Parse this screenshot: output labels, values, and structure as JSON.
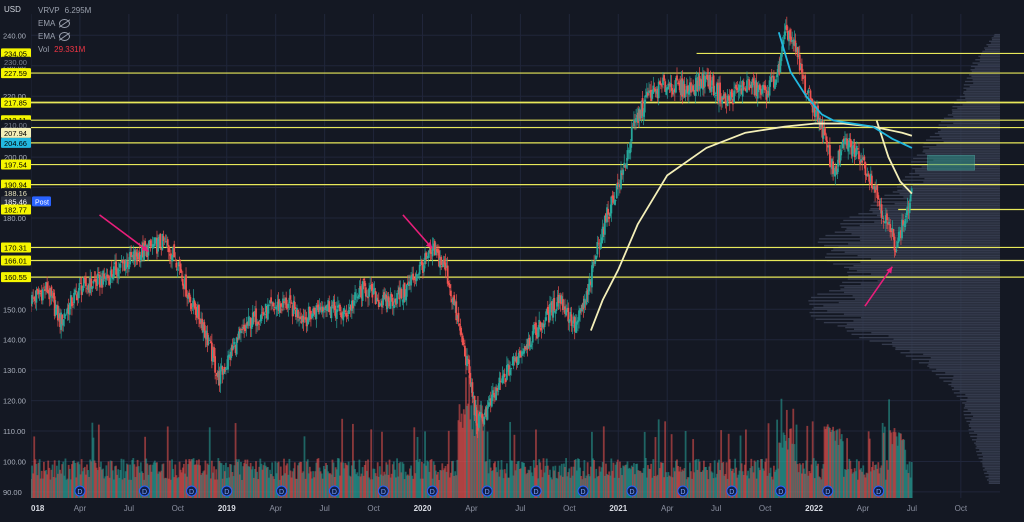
{
  "currency": "USD",
  "legend": [
    {
      "label": "VRVP",
      "value": "6.295M",
      "value_color": "#9aa0ad"
    },
    {
      "label": "EMA",
      "value": "",
      "icon": "eye-hidden-icon"
    },
    {
      "label": "EMA",
      "value": "",
      "icon": "eye-hidden-icon"
    },
    {
      "label": "Vol",
      "value": "29.331M",
      "value_color": "#f23645"
    }
  ],
  "colors": {
    "background": "#141823",
    "grid": "#20263a",
    "up": "#26a69a",
    "down": "#ef5350",
    "level_line": "#e8e85a",
    "level_tag": "#f5f500",
    "ema_fast": "#22b8e0",
    "ema_slow": "#f4efb8",
    "arrow": "#e91e7a",
    "zone": "#2f8f86",
    "post_tag": "#2962ff",
    "dividend": "#2962ff"
  },
  "chart_data": {
    "type": "candlestick",
    "title": "",
    "xlabel": "",
    "ylabel": "",
    "x_ticks": [
      "018",
      "Apr",
      "Jul",
      "Oct",
      "2019",
      "Apr",
      "Jul",
      "Oct",
      "2020",
      "Apr",
      "Jul",
      "Oct",
      "2021",
      "Apr",
      "Jul",
      "Oct",
      "2022",
      "Apr",
      "Jul",
      "Oct"
    ],
    "x_tick_dates": [
      2018.0,
      2018.25,
      2018.5,
      2018.75,
      2019.0,
      2019.25,
      2019.5,
      2019.75,
      2020.0,
      2020.25,
      2020.5,
      2020.75,
      2021.0,
      2021.25,
      2021.5,
      2021.75,
      2022.0,
      2022.25,
      2022.5,
      2022.75
    ],
    "xlim": [
      2018.0,
      2022.95
    ],
    "y_ticks": [
      240,
      230,
      220,
      210,
      200,
      190,
      180,
      170,
      160,
      150,
      140,
      130,
      120,
      110,
      100,
      90
    ],
    "y_tick_labels": [
      "240.00",
      "230.00",
      "220.00",
      "210.00",
      "200.00",
      "190.00",
      "180.00",
      "170.00",
      "160.00",
      "150.00",
      "140.00",
      "130.00",
      "120.00",
      "110.00",
      "100.00",
      "90.00"
    ],
    "ylim": [
      88,
      247
    ],
    "price_path": [
      [
        2018.0,
        153
      ],
      [
        2018.08,
        157
      ],
      [
        2018.15,
        146
      ],
      [
        2018.25,
        157
      ],
      [
        2018.38,
        160
      ],
      [
        2018.5,
        166
      ],
      [
        2018.6,
        170
      ],
      [
        2018.68,
        172
      ],
      [
        2018.75,
        166
      ],
      [
        2018.8,
        155
      ],
      [
        2018.88,
        145
      ],
      [
        2018.96,
        127
      ],
      [
        2019.04,
        138
      ],
      [
        2019.12,
        146
      ],
      [
        2019.22,
        150
      ],
      [
        2019.3,
        152
      ],
      [
        2019.4,
        147
      ],
      [
        2019.5,
        152
      ],
      [
        2019.6,
        148
      ],
      [
        2019.7,
        157
      ],
      [
        2019.8,
        152
      ],
      [
        2019.9,
        155
      ],
      [
        2019.98,
        163
      ],
      [
        2020.06,
        169
      ],
      [
        2020.12,
        163
      ],
      [
        2020.18,
        146
      ],
      [
        2020.23,
        132
      ],
      [
        2020.28,
        112
      ],
      [
        2020.33,
        117
      ],
      [
        2020.42,
        128
      ],
      [
        2020.52,
        138
      ],
      [
        2020.62,
        146
      ],
      [
        2020.7,
        154
      ],
      [
        2020.78,
        144
      ],
      [
        2020.84,
        154
      ],
      [
        2020.9,
        172
      ],
      [
        2020.96,
        184
      ],
      [
        2021.02,
        194
      ],
      [
        2021.08,
        210
      ],
      [
        2021.15,
        220
      ],
      [
        2021.25,
        224
      ],
      [
        2021.35,
        222
      ],
      [
        2021.45,
        226
      ],
      [
        2021.55,
        218
      ],
      [
        2021.65,
        224
      ],
      [
        2021.75,
        221
      ],
      [
        2021.82,
        228
      ],
      [
        2021.86,
        242
      ],
      [
        2021.9,
        236
      ],
      [
        2021.96,
        222
      ],
      [
        2022.03,
        212
      ],
      [
        2022.1,
        195
      ],
      [
        2022.16,
        205
      ],
      [
        2022.24,
        200
      ],
      [
        2022.3,
        192
      ],
      [
        2022.36,
        180
      ],
      [
        2022.42,
        171
      ],
      [
        2022.47,
        181
      ],
      [
        2022.5,
        187
      ]
    ],
    "ema_fast": [
      [
        2021.82,
        241
      ],
      [
        2021.88,
        228
      ],
      [
        2021.96,
        220
      ],
      [
        2022.04,
        214
      ],
      [
        2022.1,
        212
      ],
      [
        2022.2,
        211
      ],
      [
        2022.3,
        210
      ],
      [
        2022.4,
        206
      ],
      [
        2022.5,
        203
      ]
    ],
    "ema_slow": [
      [
        2020.86,
        143
      ],
      [
        2020.92,
        153
      ],
      [
        2021.0,
        163
      ],
      [
        2021.1,
        178
      ],
      [
        2021.25,
        194
      ],
      [
        2021.45,
        203
      ],
      [
        2021.65,
        208
      ],
      [
        2021.85,
        210
      ],
      [
        2022.0,
        211
      ],
      [
        2022.15,
        211
      ],
      [
        2022.3,
        210
      ],
      [
        2022.45,
        208
      ],
      [
        2022.5,
        207
      ]
    ],
    "ema_slow_tail": [
      [
        2022.32,
        212
      ],
      [
        2022.38,
        200
      ],
      [
        2022.44,
        192
      ],
      [
        2022.5,
        188
      ]
    ],
    "horizontal_levels": [
      {
        "price": 234.05,
        "from": 2021.4,
        "label": "234.05"
      },
      {
        "price": 227.59,
        "from": 2018.0,
        "label": "227.59"
      },
      {
        "price": 218.0,
        "from": 2018.0,
        "label": ""
      },
      {
        "price": 217.85,
        "from": 2018.0,
        "label": "217.85"
      },
      {
        "price": 212.11,
        "from": 2018.0,
        "label": "212.11"
      },
      {
        "price": 209.7,
        "from": 2018.0,
        "label": ""
      },
      {
        "price": 204.66,
        "from": 2018.0,
        "label": ""
      },
      {
        "price": 197.54,
        "from": 2018.0,
        "label": "197.54"
      },
      {
        "price": 190.94,
        "from": 2018.0,
        "label": "190.94"
      },
      {
        "price": 182.77,
        "from": 2022.43,
        "label": "182.77"
      },
      {
        "price": 170.31,
        "from": 2018.0,
        "label": "170.31"
      },
      {
        "price": 166.01,
        "from": 2018.0,
        "label": "166.01"
      },
      {
        "price": 160.55,
        "from": 2018.0,
        "label": "160.55"
      }
    ],
    "price_tags": [
      {
        "label": "234.05",
        "price": 234.05,
        "kind": "level"
      },
      {
        "label": "230.00",
        "price": 231.3,
        "kind": "axis-faded"
      },
      {
        "label": "227.59",
        "price": 227.59,
        "kind": "level"
      },
      {
        "label": "217.85",
        "price": 217.85,
        "kind": "level"
      },
      {
        "label": "212.11",
        "price": 212.11,
        "kind": "level"
      },
      {
        "label": "210.00",
        "price": 210.6,
        "kind": "axis-faded"
      },
      {
        "label": "207.94",
        "price": 207.94,
        "kind": "ema-slow"
      },
      {
        "label": "204.66",
        "price": 204.66,
        "kind": "ema-fast"
      },
      {
        "label": "200.00",
        "price": 200.0,
        "kind": "axis"
      },
      {
        "label": "197.54",
        "price": 197.54,
        "kind": "level"
      },
      {
        "label": "190.94",
        "price": 190.94,
        "kind": "level"
      },
      {
        "label": "188.16",
        "price": 188.16,
        "kind": "ema-slow-plain"
      },
      {
        "label": "185.46",
        "price": 185.46,
        "kind": "last",
        "badge": "Post"
      },
      {
        "label": "182.77",
        "price": 182.77,
        "kind": "level"
      },
      {
        "label": "170.31",
        "price": 170.31,
        "kind": "level"
      },
      {
        "label": "166.01",
        "price": 166.01,
        "kind": "level"
      },
      {
        "label": "160.55",
        "price": 160.55,
        "kind": "level"
      }
    ],
    "zone": {
      "x0": 2022.58,
      "x1": 2022.82,
      "y0": 195.7,
      "y1": 200.6
    },
    "arrows": [
      {
        "from": [
          2018.35,
          181
        ],
        "to": [
          2018.6,
          169
        ]
      },
      {
        "from": [
          2019.9,
          181
        ],
        "to": [
          2020.05,
          170
        ]
      },
      {
        "from": [
          2022.26,
          151
        ],
        "to": [
          2022.4,
          164
        ]
      }
    ],
    "dividend_markers": [
      2018.25,
      2018.58,
      2018.82,
      2019.0,
      2019.28,
      2019.55,
      2019.8,
      2020.05,
      2020.33,
      2020.58,
      2020.82,
      2021.07,
      2021.33,
      2021.58,
      2021.83,
      2022.07,
      2022.33
    ],
    "dividend_label": "D",
    "volume_profile_peaks": [
      [
        240,
        5
      ],
      [
        230,
        25
      ],
      [
        220,
        35
      ],
      [
        212,
        50
      ],
      [
        205,
        65
      ],
      [
        200,
        75
      ],
      [
        192,
        85
      ],
      [
        185,
        110
      ],
      [
        178,
        140
      ],
      [
        172,
        160
      ],
      [
        165,
        150
      ],
      [
        160,
        130
      ],
      [
        155,
        160
      ],
      [
        150,
        175
      ],
      [
        145,
        155
      ],
      [
        140,
        120
      ],
      [
        135,
        85
      ],
      [
        128,
        55
      ],
      [
        120,
        35
      ],
      [
        110,
        28
      ],
      [
        100,
        18
      ],
      [
        92,
        10
      ]
    ]
  }
}
